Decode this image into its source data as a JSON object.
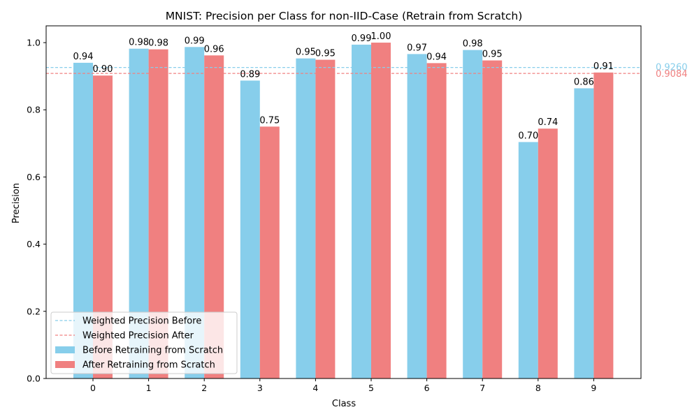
{
  "chart_data": {
    "type": "bar",
    "title": "MNIST: Precision per Class for non-IID-Case (Retrain from Scratch)",
    "xlabel": "Class",
    "ylabel": "Precision",
    "categories": [
      "0",
      "1",
      "2",
      "3",
      "4",
      "5",
      "6",
      "7",
      "8",
      "9"
    ],
    "ylim": [
      0,
      1.05
    ],
    "yticks": [
      "0.0",
      "0.2",
      "0.4",
      "0.6",
      "0.8",
      "1.0"
    ],
    "grid": false,
    "legend_position": "lower-left",
    "series": [
      {
        "name": "Before Retraining from Scratch",
        "color": "#87CEEB",
        "values": [
          0.94,
          0.982,
          0.987,
          0.887,
          0.953,
          0.994,
          0.966,
          0.978,
          0.704,
          0.864
        ],
        "labels": [
          "0.94",
          "0.98",
          "0.99",
          "0.89",
          "0.95",
          "0.99",
          "0.97",
          "0.98",
          "0.70",
          "0.86"
        ]
      },
      {
        "name": "After Retraining from Scratch",
        "color": "#F08080",
        "values": [
          0.902,
          0.98,
          0.962,
          0.75,
          0.949,
          1.0,
          0.939,
          0.947,
          0.744,
          0.911
        ],
        "labels": [
          "0.90",
          "0.98",
          "0.96",
          "0.75",
          "0.95",
          "1.00",
          "0.94",
          "0.95",
          "0.74",
          "0.91"
        ]
      }
    ],
    "reference_lines": [
      {
        "name": "Weighted Precision Before",
        "value": 0.926,
        "label": "0.9260",
        "color": "#87CEEB"
      },
      {
        "name": "Weighted Precision After",
        "value": 0.9084,
        "label": "0.9084",
        "color": "#F08080"
      }
    ]
  }
}
